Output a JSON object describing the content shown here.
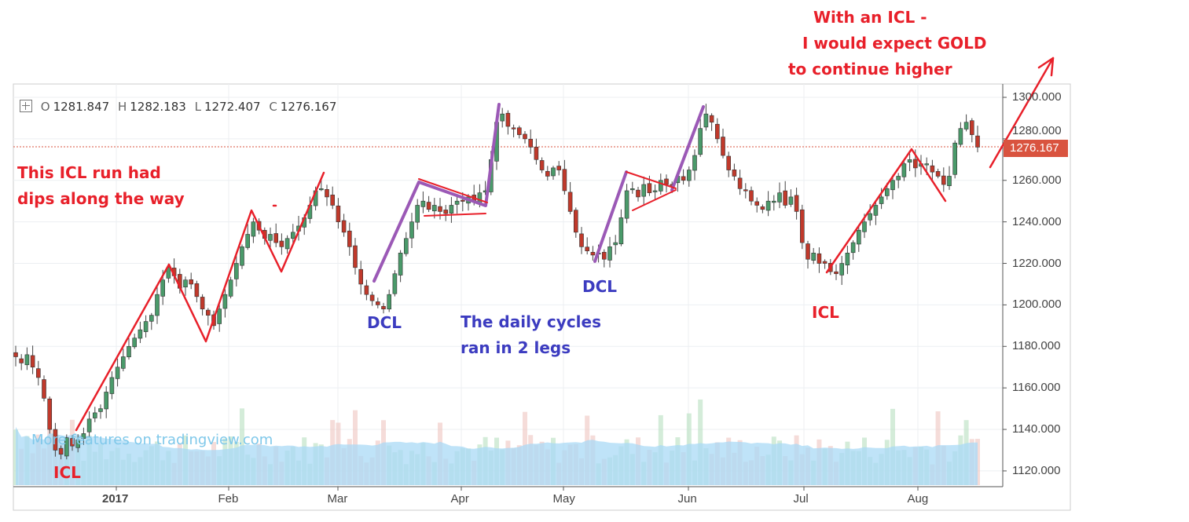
{
  "legend": {
    "o_label": "O",
    "open": "1281.847",
    "h_label": "H",
    "high": "1282.183",
    "l_label": "L",
    "low": "1272.407",
    "c_label": "C",
    "close": "1276.167"
  },
  "last_price_label": "1276.167",
  "watermark": "More features on tradingview.com",
  "annotations": {
    "icl_run_line1": "This ICL run had",
    "icl_run_line2": "dips along the way",
    "icl_1": "ICL",
    "dcl_1": "DCL",
    "daily_cycles_line1": "The daily cycles",
    "daily_cycles_line2": "ran in 2 legs",
    "dcl_2": "DCL",
    "icl_2": "ICL",
    "expect_line1": "With an ICL -",
    "expect_line2": "I would expect GOLD",
    "expect_line3": "to continue higher"
  },
  "colors": {
    "up": "#4a9a6a",
    "down": "#c0392b",
    "annotation_red": "#e8202a",
    "annotation_purple": "#9b59b6",
    "annotation_blue": "#3c3cc0",
    "volume_ma": "#a9d9f5"
  },
  "chart_data": {
    "type": "candlestick",
    "title": "",
    "x_tick_labels": [
      "2017",
      "Feb",
      "Mar",
      "Apr",
      "May",
      "Jun",
      "Jul",
      "Aug"
    ],
    "y_tick_labels": [
      "1300.000",
      "1280.000",
      "1260.000",
      "1240.000",
      "1220.000",
      "1200.000",
      "1180.000",
      "1160.000",
      "1140.000",
      "1120.000"
    ],
    "ylim": [
      1113,
      1306
    ],
    "last_close": 1276.167,
    "closes": [
      1175,
      1172,
      1176,
      1170,
      1165,
      1155,
      1140,
      1130,
      1128,
      1136,
      1132,
      1135,
      1138,
      1145,
      1148,
      1150,
      1158,
      1165,
      1170,
      1175,
      1180,
      1184,
      1188,
      1192,
      1195,
      1205,
      1212,
      1218,
      1214,
      1208,
      1212,
      1210,
      1204,
      1198,
      1195,
      1190,
      1198,
      1205,
      1212,
      1220,
      1228,
      1234,
      1240,
      1236,
      1232,
      1234,
      1230,
      1228,
      1232,
      1235,
      1238,
      1242,
      1248,
      1255,
      1256,
      1252,
      1248,
      1240,
      1235,
      1228,
      1218,
      1210,
      1205,
      1202,
      1200,
      1198,
      1205,
      1215,
      1225,
      1232,
      1240,
      1248,
      1250,
      1246,
      1248,
      1245,
      1244,
      1248,
      1250,
      1250,
      1252,
      1250,
      1254,
      1255,
      1270,
      1288,
      1292,
      1286,
      1285,
      1282,
      1280,
      1276,
      1270,
      1265,
      1262,
      1266,
      1265,
      1255,
      1245,
      1235,
      1228,
      1226,
      1224,
      1225,
      1222,
      1228,
      1230,
      1242,
      1255,
      1256,
      1252,
      1258,
      1254,
      1255,
      1260,
      1258,
      1258,
      1262,
      1260,
      1265,
      1272,
      1285,
      1292,
      1288,
      1280,
      1272,
      1265,
      1262,
      1256,
      1255,
      1250,
      1248,
      1246,
      1250,
      1250,
      1254,
      1248,
      1252,
      1245,
      1230,
      1222,
      1225,
      1220,
      1220,
      1216,
      1215,
      1220,
      1225,
      1230,
      1236,
      1240,
      1244,
      1248,
      1252,
      1256,
      1260,
      1262,
      1268,
      1270,
      1266,
      1268,
      1268,
      1264,
      1262,
      1258,
      1262,
      1278,
      1285,
      1288,
      1282,
      1276
    ]
  }
}
